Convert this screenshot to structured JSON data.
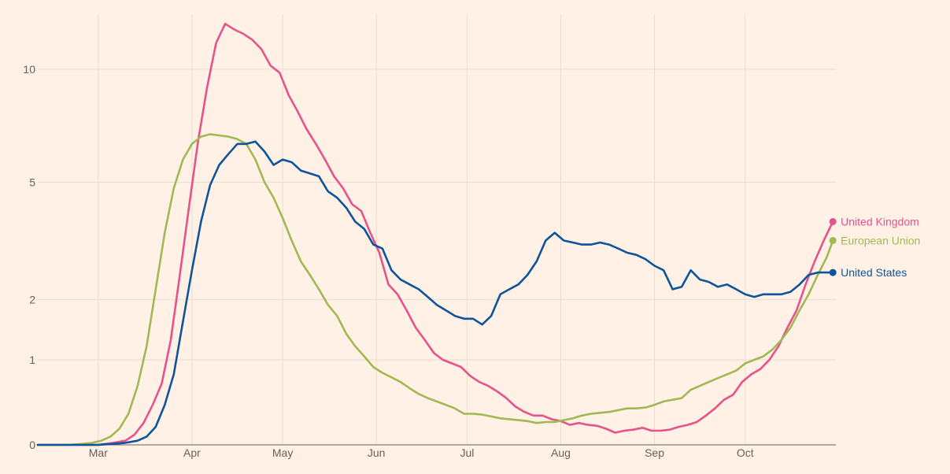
{
  "chart_data": {
    "type": "line",
    "title": "",
    "xlabel": "",
    "ylabel": "",
    "x_ticks": [
      "Mar",
      "Apr",
      "May",
      "Jun",
      "Jul",
      "Aug",
      "Sep",
      "Oct"
    ],
    "x_tick_dates": [
      "2020-03-01",
      "2020-04-01",
      "2020-05-01",
      "2020-06-01",
      "2020-07-01",
      "2020-08-01",
      "2020-09-01",
      "2020-10-01"
    ],
    "x_range": [
      "2020-02-10",
      "2020-10-31"
    ],
    "y_scale": "symlog",
    "y_ticks": [
      0,
      1,
      2,
      5,
      10
    ],
    "y_range": [
      0,
      13.6
    ],
    "grid": true,
    "legend": "labels at line ends",
    "series": [
      {
        "name": "United Kingdom",
        "color": "#E6538A",
        "points": [
          [
            "2020-02-10",
            0
          ],
          [
            "2020-03-01",
            0
          ],
          [
            "2020-03-06",
            0.02
          ],
          [
            "2020-03-10",
            0.04
          ],
          [
            "2020-03-13",
            0.1
          ],
          [
            "2020-03-16",
            0.22
          ],
          [
            "2020-03-19",
            0.42
          ],
          [
            "2020-03-22",
            0.68
          ],
          [
            "2020-03-25",
            1.3
          ],
          [
            "2020-03-28",
            2.5
          ],
          [
            "2020-03-31",
            4.2
          ],
          [
            "2020-04-03",
            6.5
          ],
          [
            "2020-04-06",
            9.0
          ],
          [
            "2020-04-09",
            11.6
          ],
          [
            "2020-04-12",
            12.9
          ],
          [
            "2020-04-15",
            12.5
          ],
          [
            "2020-04-18",
            12.2
          ],
          [
            "2020-04-21",
            11.8
          ],
          [
            "2020-04-24",
            11.2
          ],
          [
            "2020-04-27",
            10.2
          ],
          [
            "2020-04-30",
            9.8
          ],
          [
            "2020-05-03",
            8.6
          ],
          [
            "2020-05-06",
            7.8
          ],
          [
            "2020-05-09",
            7.0
          ],
          [
            "2020-05-12",
            6.4
          ],
          [
            "2020-05-15",
            5.8
          ],
          [
            "2020-05-18",
            5.2
          ],
          [
            "2020-05-21",
            4.8
          ],
          [
            "2020-05-24",
            4.3
          ],
          [
            "2020-05-27",
            4.1
          ],
          [
            "2020-05-30",
            3.5
          ],
          [
            "2020-06-02",
            3.0
          ],
          [
            "2020-06-05",
            2.3
          ],
          [
            "2020-06-08",
            2.1
          ],
          [
            "2020-06-11",
            1.8
          ],
          [
            "2020-06-14",
            1.5
          ],
          [
            "2020-06-17",
            1.3
          ],
          [
            "2020-06-20",
            1.1
          ],
          [
            "2020-06-23",
            1.0
          ],
          [
            "2020-06-26",
            0.95
          ],
          [
            "2020-06-29",
            0.9
          ],
          [
            "2020-07-02",
            0.78
          ],
          [
            "2020-07-05",
            0.7
          ],
          [
            "2020-07-08",
            0.65
          ],
          [
            "2020-07-11",
            0.58
          ],
          [
            "2020-07-14",
            0.5
          ],
          [
            "2020-07-17",
            0.4
          ],
          [
            "2020-07-20",
            0.34
          ],
          [
            "2020-07-23",
            0.3
          ],
          [
            "2020-07-26",
            0.3
          ],
          [
            "2020-07-29",
            0.26
          ],
          [
            "2020-08-01",
            0.24
          ],
          [
            "2020-08-04",
            0.2
          ],
          [
            "2020-08-07",
            0.22
          ],
          [
            "2020-08-10",
            0.2
          ],
          [
            "2020-08-13",
            0.19
          ],
          [
            "2020-08-16",
            0.16
          ],
          [
            "2020-08-19",
            0.12
          ],
          [
            "2020-08-22",
            0.14
          ],
          [
            "2020-08-25",
            0.15
          ],
          [
            "2020-08-28",
            0.17
          ],
          [
            "2020-08-31",
            0.14
          ],
          [
            "2020-09-03",
            0.14
          ],
          [
            "2020-09-06",
            0.15
          ],
          [
            "2020-09-09",
            0.18
          ],
          [
            "2020-09-12",
            0.2
          ],
          [
            "2020-09-15",
            0.23
          ],
          [
            "2020-09-18",
            0.3
          ],
          [
            "2020-09-21",
            0.38
          ],
          [
            "2020-09-24",
            0.48
          ],
          [
            "2020-09-27",
            0.54
          ],
          [
            "2020-09-30",
            0.7
          ],
          [
            "2020-10-03",
            0.8
          ],
          [
            "2020-10-06",
            0.87
          ],
          [
            "2020-10-09",
            1.0
          ],
          [
            "2020-10-12",
            1.2
          ],
          [
            "2020-10-15",
            1.5
          ],
          [
            "2020-10-18",
            1.8
          ],
          [
            "2020-10-21",
            2.3
          ],
          [
            "2020-10-24",
            2.8
          ],
          [
            "2020-10-27",
            3.3
          ],
          [
            "2020-10-30",
            3.8
          ]
        ]
      },
      {
        "name": "European Union",
        "color": "#A0B952",
        "points": [
          [
            "2020-02-10",
            0
          ],
          [
            "2020-02-20",
            0
          ],
          [
            "2020-02-25",
            0.01
          ],
          [
            "2020-02-28",
            0.02
          ],
          [
            "2020-03-02",
            0.04
          ],
          [
            "2020-03-05",
            0.08
          ],
          [
            "2020-03-08",
            0.16
          ],
          [
            "2020-03-11",
            0.32
          ],
          [
            "2020-03-14",
            0.65
          ],
          [
            "2020-03-17",
            1.2
          ],
          [
            "2020-03-20",
            2.2
          ],
          [
            "2020-03-23",
            3.5
          ],
          [
            "2020-03-26",
            4.8
          ],
          [
            "2020-03-29",
            5.8
          ],
          [
            "2020-04-01",
            6.4
          ],
          [
            "2020-04-04",
            6.7
          ],
          [
            "2020-04-07",
            6.8
          ],
          [
            "2020-04-10",
            6.75
          ],
          [
            "2020-04-13",
            6.7
          ],
          [
            "2020-04-16",
            6.6
          ],
          [
            "2020-04-19",
            6.4
          ],
          [
            "2020-04-22",
            5.8
          ],
          [
            "2020-04-25",
            5.0
          ],
          [
            "2020-04-28",
            4.5
          ],
          [
            "2020-05-01",
            3.9
          ],
          [
            "2020-05-04",
            3.3
          ],
          [
            "2020-05-07",
            2.8
          ],
          [
            "2020-05-10",
            2.5
          ],
          [
            "2020-05-13",
            2.2
          ],
          [
            "2020-05-16",
            1.9
          ],
          [
            "2020-05-19",
            1.7
          ],
          [
            "2020-05-22",
            1.4
          ],
          [
            "2020-05-25",
            1.2
          ],
          [
            "2020-05-28",
            1.05
          ],
          [
            "2020-05-31",
            0.9
          ],
          [
            "2020-06-03",
            0.82
          ],
          [
            "2020-06-06",
            0.76
          ],
          [
            "2020-06-09",
            0.7
          ],
          [
            "2020-06-12",
            0.62
          ],
          [
            "2020-06-15",
            0.55
          ],
          [
            "2020-06-18",
            0.5
          ],
          [
            "2020-06-21",
            0.46
          ],
          [
            "2020-06-24",
            0.42
          ],
          [
            "2020-06-27",
            0.38
          ],
          [
            "2020-06-30",
            0.32
          ],
          [
            "2020-07-03",
            0.32
          ],
          [
            "2020-07-06",
            0.31
          ],
          [
            "2020-07-09",
            0.29
          ],
          [
            "2020-07-12",
            0.27
          ],
          [
            "2020-07-15",
            0.26
          ],
          [
            "2020-07-18",
            0.25
          ],
          [
            "2020-07-21",
            0.24
          ],
          [
            "2020-07-24",
            0.22
          ],
          [
            "2020-07-27",
            0.23
          ],
          [
            "2020-07-30",
            0.23
          ],
          [
            "2020-08-02",
            0.25
          ],
          [
            "2020-08-05",
            0.27
          ],
          [
            "2020-08-08",
            0.3
          ],
          [
            "2020-08-11",
            0.32
          ],
          [
            "2020-08-14",
            0.33
          ],
          [
            "2020-08-17",
            0.34
          ],
          [
            "2020-08-20",
            0.36
          ],
          [
            "2020-08-23",
            0.38
          ],
          [
            "2020-08-26",
            0.38
          ],
          [
            "2020-08-29",
            0.39
          ],
          [
            "2020-09-01",
            0.42
          ],
          [
            "2020-09-04",
            0.46
          ],
          [
            "2020-09-07",
            0.48
          ],
          [
            "2020-09-10",
            0.5
          ],
          [
            "2020-09-13",
            0.6
          ],
          [
            "2020-09-16",
            0.65
          ],
          [
            "2020-09-19",
            0.7
          ],
          [
            "2020-09-22",
            0.75
          ],
          [
            "2020-09-25",
            0.8
          ],
          [
            "2020-09-28",
            0.85
          ],
          [
            "2020-10-01",
            0.95
          ],
          [
            "2020-10-04",
            1.0
          ],
          [
            "2020-10-07",
            1.05
          ],
          [
            "2020-10-10",
            1.15
          ],
          [
            "2020-10-13",
            1.3
          ],
          [
            "2020-10-16",
            1.5
          ],
          [
            "2020-10-19",
            1.8
          ],
          [
            "2020-10-22",
            2.1
          ],
          [
            "2020-10-25",
            2.5
          ],
          [
            "2020-10-28",
            2.9
          ],
          [
            "2020-10-30",
            3.3
          ]
        ]
      },
      {
        "name": "United States",
        "color": "#0F5499",
        "points": [
          [
            "2020-02-10",
            0
          ],
          [
            "2020-03-01",
            0
          ],
          [
            "2020-03-06",
            0.01
          ],
          [
            "2020-03-10",
            0.02
          ],
          [
            "2020-03-14",
            0.04
          ],
          [
            "2020-03-17",
            0.08
          ],
          [
            "2020-03-20",
            0.18
          ],
          [
            "2020-03-23",
            0.42
          ],
          [
            "2020-03-26",
            0.8
          ],
          [
            "2020-03-29",
            1.6
          ],
          [
            "2020-04-01",
            2.6
          ],
          [
            "2020-04-04",
            3.8
          ],
          [
            "2020-04-07",
            4.9
          ],
          [
            "2020-04-10",
            5.6
          ],
          [
            "2020-04-13",
            6.0
          ],
          [
            "2020-04-16",
            6.4
          ],
          [
            "2020-04-19",
            6.4
          ],
          [
            "2020-04-22",
            6.5
          ],
          [
            "2020-04-25",
            6.1
          ],
          [
            "2020-04-28",
            5.6
          ],
          [
            "2020-05-01",
            5.8
          ],
          [
            "2020-05-04",
            5.7
          ],
          [
            "2020-05-07",
            5.4
          ],
          [
            "2020-05-10",
            5.3
          ],
          [
            "2020-05-13",
            5.2
          ],
          [
            "2020-05-16",
            4.7
          ],
          [
            "2020-05-19",
            4.5
          ],
          [
            "2020-05-22",
            4.2
          ],
          [
            "2020-05-25",
            3.8
          ],
          [
            "2020-05-28",
            3.6
          ],
          [
            "2020-05-31",
            3.2
          ],
          [
            "2020-06-03",
            3.1
          ],
          [
            "2020-06-06",
            2.6
          ],
          [
            "2020-06-09",
            2.4
          ],
          [
            "2020-06-12",
            2.3
          ],
          [
            "2020-06-15",
            2.2
          ],
          [
            "2020-06-18",
            2.05
          ],
          [
            "2020-06-21",
            1.9
          ],
          [
            "2020-06-24",
            1.8
          ],
          [
            "2020-06-27",
            1.7
          ],
          [
            "2020-06-30",
            1.65
          ],
          [
            "2020-07-03",
            1.65
          ],
          [
            "2020-07-06",
            1.55
          ],
          [
            "2020-07-09",
            1.7
          ],
          [
            "2020-07-12",
            2.1
          ],
          [
            "2020-07-15",
            2.2
          ],
          [
            "2020-07-18",
            2.3
          ],
          [
            "2020-07-21",
            2.5
          ],
          [
            "2020-07-24",
            2.8
          ],
          [
            "2020-07-27",
            3.3
          ],
          [
            "2020-07-30",
            3.5
          ],
          [
            "2020-08-02",
            3.3
          ],
          [
            "2020-08-05",
            3.25
          ],
          [
            "2020-08-08",
            3.2
          ],
          [
            "2020-08-11",
            3.2
          ],
          [
            "2020-08-14",
            3.25
          ],
          [
            "2020-08-17",
            3.2
          ],
          [
            "2020-08-20",
            3.1
          ],
          [
            "2020-08-23",
            3.0
          ],
          [
            "2020-08-26",
            2.95
          ],
          [
            "2020-08-29",
            2.85
          ],
          [
            "2020-09-01",
            2.7
          ],
          [
            "2020-09-04",
            2.6
          ],
          [
            "2020-09-07",
            2.2
          ],
          [
            "2020-09-10",
            2.25
          ],
          [
            "2020-09-13",
            2.6
          ],
          [
            "2020-09-16",
            2.4
          ],
          [
            "2020-09-19",
            2.35
          ],
          [
            "2020-09-22",
            2.25
          ],
          [
            "2020-09-25",
            2.3
          ],
          [
            "2020-09-28",
            2.2
          ],
          [
            "2020-10-01",
            2.1
          ],
          [
            "2020-10-04",
            2.05
          ],
          [
            "2020-10-07",
            2.1
          ],
          [
            "2020-10-10",
            2.1
          ],
          [
            "2020-10-13",
            2.1
          ],
          [
            "2020-10-16",
            2.15
          ],
          [
            "2020-10-19",
            2.3
          ],
          [
            "2020-10-22",
            2.5
          ],
          [
            "2020-10-25",
            2.55
          ],
          [
            "2020-10-28",
            2.55
          ],
          [
            "2020-10-30",
            2.55
          ]
        ]
      }
    ]
  }
}
